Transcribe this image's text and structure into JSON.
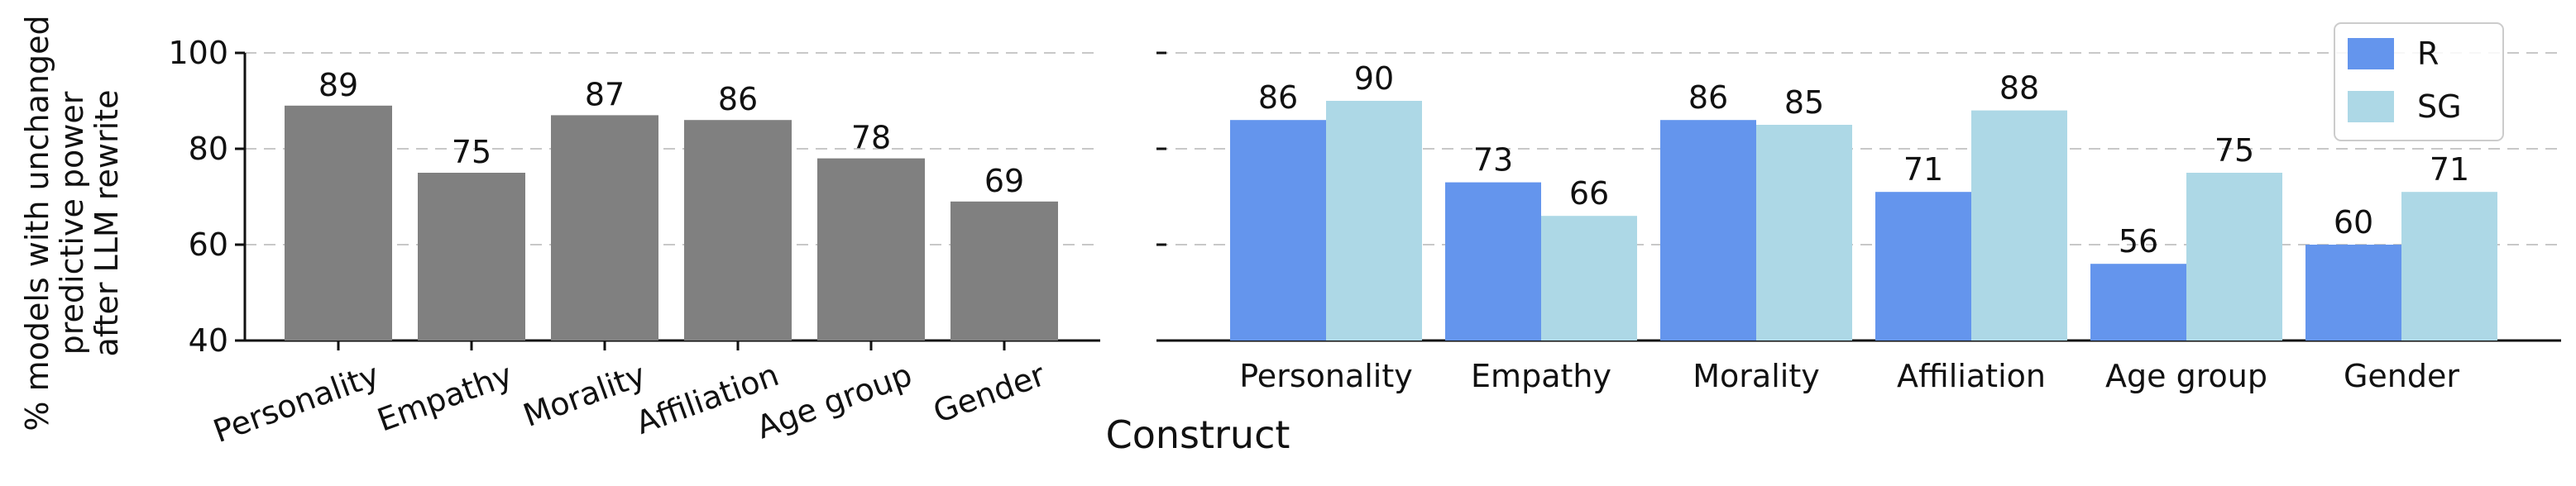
{
  "chart_data": [
    {
      "type": "bar",
      "title": "",
      "xlabel": "",
      "ylabel": "% models with unchanged predictive power after LLM rewrite",
      "ylabel_lines": [
        "% models with unchanged",
        "predictive power",
        "after LLM rewrite"
      ],
      "ylim": [
        40,
        100
      ],
      "yticks": [
        "40",
        "60",
        "80",
        "100"
      ],
      "grid": "horizontal dashed",
      "categories": [
        "Personality",
        "Empathy",
        "Morality",
        "Affiliation",
        "Age group",
        "Gender"
      ],
      "series": [
        {
          "values": [
            89,
            75,
            87,
            86,
            78,
            69
          ],
          "color": "#808080"
        }
      ],
      "data_labels": [
        "89",
        "75",
        "87",
        "86",
        "78",
        "69"
      ]
    },
    {
      "type": "bar",
      "title": "",
      "xlabel": "Construct",
      "ylabel": "",
      "ylim": [
        40,
        100
      ],
      "grid": "horizontal dashed",
      "legend": "top-right",
      "categories": [
        "Personality",
        "Empathy",
        "Morality",
        "Affiliation",
        "Age group",
        "Gender"
      ],
      "series": [
        {
          "name": "R",
          "values": [
            86,
            73,
            86,
            71,
            56,
            60
          ],
          "color": "#6495ed",
          "data_labels": [
            "86",
            "73",
            "86",
            "71",
            "56",
            "60"
          ]
        },
        {
          "name": "SG",
          "values": [
            90,
            66,
            85,
            88,
            75,
            71
          ],
          "color": "#add8e6",
          "data_labels": [
            "90",
            "66",
            "85",
            "88",
            "75",
            "71"
          ]
        }
      ]
    }
  ]
}
